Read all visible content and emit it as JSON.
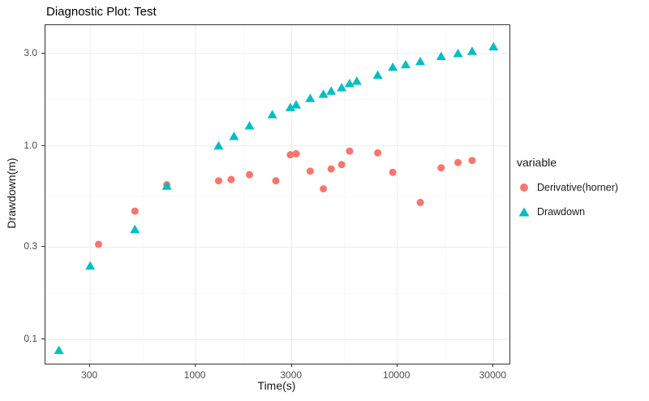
{
  "chart_data": {
    "type": "scatter",
    "title": "Diagnostic Plot: Test",
    "xlabel": "Time(s)",
    "ylabel": "Drawdown(m)",
    "x_scale": "log",
    "y_scale": "log",
    "xlim": [
      180,
      36000
    ],
    "ylim": [
      0.075,
      4.2
    ],
    "grid": true,
    "grid_color": "#ebebeb",
    "grid_minor_color": "#f6f6f6",
    "x_ticks": [
      {
        "value": 300,
        "label": "300"
      },
      {
        "value": 1000,
        "label": "1000"
      },
      {
        "value": 3000,
        "label": "3000"
      },
      {
        "value": 10000,
        "label": "10000"
      },
      {
        "value": 30000,
        "label": "30000"
      }
    ],
    "y_ticks": [
      {
        "value": 0.1,
        "label": "0.1"
      },
      {
        "value": 0.3,
        "label": "0.3"
      },
      {
        "value": 1.0,
        "label": "1.0"
      },
      {
        "value": 3.0,
        "label": "3.0"
      }
    ],
    "x_minor": [
      548,
      1732,
      5477,
      17321
    ],
    "y_minor": [
      0.173,
      0.548,
      1.732
    ],
    "legend_title": "variable",
    "legend_position": "right",
    "series": [
      {
        "name": "Derivative(horner)",
        "marker": "circle",
        "color": "#F8766D",
        "points": [
          [
            330,
            0.31
          ],
          [
            500,
            0.46
          ],
          [
            720,
            0.63
          ],
          [
            1300,
            0.66
          ],
          [
            1500,
            0.67
          ],
          [
            1850,
            0.71
          ],
          [
            2500,
            0.66
          ],
          [
            2950,
            0.9
          ],
          [
            3150,
            0.91
          ],
          [
            3700,
            0.74
          ],
          [
            4300,
            0.6
          ],
          [
            4700,
            0.76
          ],
          [
            5300,
            0.8
          ],
          [
            5800,
            0.94
          ],
          [
            8000,
            0.92
          ],
          [
            9500,
            0.73
          ],
          [
            13000,
            0.51
          ],
          [
            16500,
            0.77
          ],
          [
            20000,
            0.82
          ],
          [
            23500,
            0.84
          ]
        ]
      },
      {
        "name": "Drawdown",
        "marker": "triangle",
        "color": "#00BFC4",
        "points": [
          [
            210,
            0.088
          ],
          [
            300,
            0.24
          ],
          [
            500,
            0.37
          ],
          [
            720,
            0.62
          ],
          [
            1300,
            1.0
          ],
          [
            1550,
            1.12
          ],
          [
            1850,
            1.27
          ],
          [
            2400,
            1.45
          ],
          [
            2950,
            1.58
          ],
          [
            3150,
            1.63
          ],
          [
            3700,
            1.76
          ],
          [
            4300,
            1.85
          ],
          [
            4700,
            1.92
          ],
          [
            5300,
            2.0
          ],
          [
            5800,
            2.1
          ],
          [
            6300,
            2.16
          ],
          [
            8000,
            2.32
          ],
          [
            9500,
            2.55
          ],
          [
            11000,
            2.63
          ],
          [
            13000,
            2.73
          ],
          [
            16500,
            2.9
          ],
          [
            20000,
            3.0
          ],
          [
            23500,
            3.08
          ],
          [
            30000,
            3.25
          ]
        ]
      }
    ]
  }
}
